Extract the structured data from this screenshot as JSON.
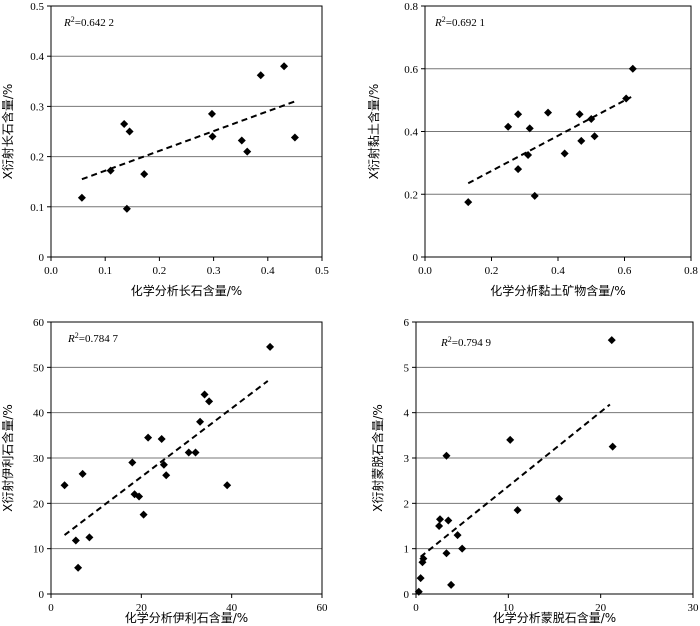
{
  "chart_data": [
    {
      "type": "scatter",
      "xlabel": "化学分析长石含量/%",
      "ylabel": "X衍射长石含量/%",
      "r2_symbol": "R",
      "r2_value": "=0.642 2",
      "xlim": [
        0,
        0.5
      ],
      "ylim": [
        0,
        0.5
      ],
      "xticks": [
        "0.0",
        "0.1",
        "0.2",
        "0.3",
        "0.4",
        "0.5"
      ],
      "yticks": [
        "0",
        "0.1",
        "0.2",
        "0.3",
        "0.4",
        "0.5"
      ],
      "points": [
        [
          0.057,
          0.118
        ],
        [
          0.11,
          0.172
        ],
        [
          0.135,
          0.265
        ],
        [
          0.14,
          0.096
        ],
        [
          0.145,
          0.25
        ],
        [
          0.172,
          0.165
        ],
        [
          0.297,
          0.285
        ],
        [
          0.298,
          0.24
        ],
        [
          0.352,
          0.232
        ],
        [
          0.362,
          0.21
        ],
        [
          0.387,
          0.362
        ],
        [
          0.43,
          0.38
        ],
        [
          0.45,
          0.238
        ]
      ],
      "trendline": [
        [
          0.057,
          0.155
        ],
        [
          0.45,
          0.31
        ]
      ]
    },
    {
      "type": "scatter",
      "xlabel": "化学分析黏土矿物含量/%",
      "ylabel": "X衍射黏土含量/%",
      "r2_symbol": "R",
      "r2_value": "=0.692 1",
      "xlim": [
        0,
        0.8
      ],
      "ylim": [
        0,
        0.8
      ],
      "xticks": [
        "0.0",
        "0.2",
        "0.4",
        "0.6",
        "0.8"
      ],
      "yticks": [
        "0",
        "0.2",
        "0.4",
        "0.6",
        "0.8"
      ],
      "points": [
        [
          0.13,
          0.175
        ],
        [
          0.25,
          0.415
        ],
        [
          0.28,
          0.455
        ],
        [
          0.28,
          0.28
        ],
        [
          0.31,
          0.325
        ],
        [
          0.315,
          0.41
        ],
        [
          0.33,
          0.195
        ],
        [
          0.37,
          0.46
        ],
        [
          0.42,
          0.33
        ],
        [
          0.465,
          0.455
        ],
        [
          0.47,
          0.37
        ],
        [
          0.5,
          0.44
        ],
        [
          0.51,
          0.385
        ],
        [
          0.605,
          0.505
        ],
        [
          0.625,
          0.6
        ]
      ],
      "trendline": [
        [
          0.13,
          0.235
        ],
        [
          0.62,
          0.51
        ]
      ]
    },
    {
      "type": "scatter",
      "xlabel": "化学分析伊利石含量/%",
      "ylabel": "X衍射伊利石含量/%",
      "r2_symbol": "R",
      "r2_value": "=0.784 7",
      "xlim": [
        0,
        60
      ],
      "ylim": [
        0,
        60
      ],
      "xticks": [
        "0",
        "20",
        "40",
        "60"
      ],
      "yticks": [
        "0",
        "10",
        "20",
        "30",
        "40",
        "50",
        "60"
      ],
      "points": [
        [
          3,
          24
        ],
        [
          5.5,
          11.8
        ],
        [
          6,
          5.8
        ],
        [
          7,
          26.5
        ],
        [
          8.5,
          12.5
        ],
        [
          18,
          29
        ],
        [
          18.5,
          22
        ],
        [
          19.5,
          21.5
        ],
        [
          20.5,
          17.5
        ],
        [
          21.5,
          34.5
        ],
        [
          24.5,
          34.2
        ],
        [
          25,
          28.5
        ],
        [
          25.5,
          26.2
        ],
        [
          30.5,
          31.2
        ],
        [
          32,
          31.2
        ],
        [
          33,
          38
        ],
        [
          34,
          44
        ],
        [
          35,
          42.5
        ],
        [
          39,
          24
        ],
        [
          48.5,
          54.5
        ]
      ],
      "trendline": [
        [
          3,
          13
        ],
        [
          48,
          47
        ]
      ]
    },
    {
      "type": "scatter",
      "xlabel": "化学分析蒙脱石含量/%",
      "ylabel": "X衍射蒙脱石含量/%",
      "r2_symbol": "R",
      "r2_value": "=0.794 9",
      "xlim": [
        0,
        30
      ],
      "ylim": [
        0,
        6
      ],
      "xticks": [
        "0",
        "10",
        "20",
        "30"
      ],
      "yticks": [
        "0",
        "1",
        "2",
        "3",
        "4",
        "5",
        "6"
      ],
      "points": [
        [
          0.3,
          0.05
        ],
        [
          0.5,
          0.35
        ],
        [
          0.7,
          0.7
        ],
        [
          0.8,
          0.78
        ],
        [
          2.5,
          1.5
        ],
        [
          2.6,
          1.65
        ],
        [
          3.3,
          0.9
        ],
        [
          3.3,
          3.05
        ],
        [
          3.5,
          1.62
        ],
        [
          3.8,
          0.2
        ],
        [
          4.5,
          1.3
        ],
        [
          5,
          1
        ],
        [
          10.2,
          3.4
        ],
        [
          11,
          1.85
        ],
        [
          15.5,
          2.1
        ],
        [
          21.2,
          5.6
        ],
        [
          21.3,
          3.25
        ]
      ],
      "trendline": [
        [
          0.5,
          0.82
        ],
        [
          21,
          4.18
        ]
      ]
    }
  ]
}
